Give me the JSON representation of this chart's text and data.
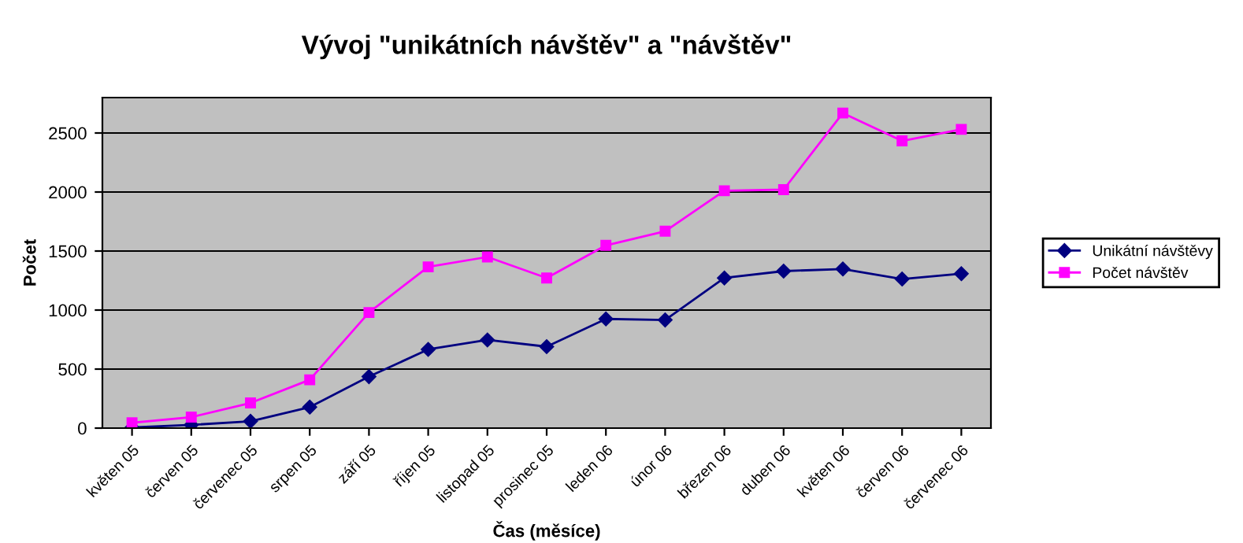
{
  "chart_data": {
    "type": "line",
    "title": "Vývoj \"unikátních návštěv\" a \"návštěv\"",
    "xlabel": "Čas (měsíce)",
    "ylabel": "Počet",
    "categories": [
      "květen 05",
      "červen 05",
      "červenec 05",
      "srpen 05",
      "září 05",
      "říjen 05",
      "listopad 05",
      "prosinec 05",
      "leden 06",
      "únor 06",
      "březen 06",
      "duben 06",
      "květen 06",
      "červen 06",
      "červenec 06"
    ],
    "series": [
      {
        "name": "Unikátní návštěvy",
        "color": "#000080",
        "marker": "diamond",
        "values": [
          5,
          27,
          58,
          178,
          436,
          667,
          747,
          690,
          925,
          916,
          1272,
          1330,
          1348,
          1263,
          1308
        ]
      },
      {
        "name": "Počet návštěv",
        "color": "#ff00ff",
        "marker": "square",
        "values": [
          45,
          93,
          213,
          409,
          979,
          1366,
          1450,
          1272,
          1548,
          1668,
          2011,
          2020,
          2669,
          2433,
          2531
        ]
      }
    ],
    "ylim": [
      0,
      2800
    ],
    "yticks": [
      0,
      500,
      1000,
      1500,
      2000,
      2500
    ],
    "grid": "y",
    "legend": "right"
  }
}
